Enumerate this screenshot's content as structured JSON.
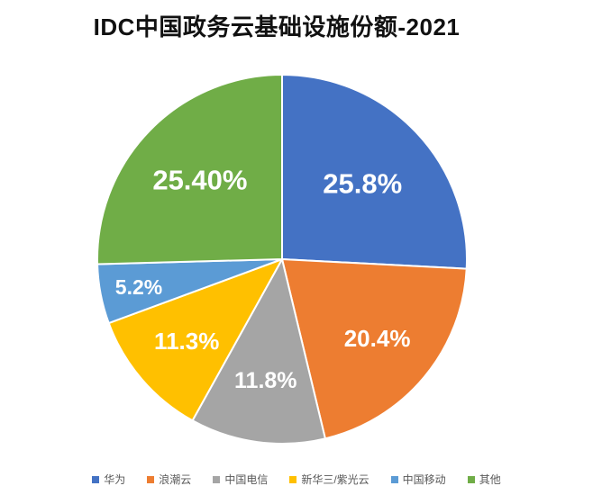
{
  "title": "IDC中国政务云基础设施份额-2021",
  "chart_data": {
    "type": "pie",
    "title": "IDC中国政务云基础设施份额-2021",
    "labels": [
      "华为",
      "浪潮云",
      "中国电信",
      "新华三/紫光云",
      "中国移动",
      "其他"
    ],
    "values": [
      25.8,
      20.4,
      11.8,
      11.3,
      5.2,
      25.4
    ],
    "slice_labels": [
      "25.8%",
      "20.4%",
      "11.8%",
      "11.3%",
      "5.2%",
      "25.40%"
    ],
    "colors": [
      "#4472C4",
      "#ED7D31",
      "#A5A5A5",
      "#FFC000",
      "#5B9BD5",
      "#70AD47"
    ],
    "start_angle_deg": 0,
    "direction": "clockwise",
    "slice_label_color": "#FFFFFF",
    "legend_position": "bottom",
    "legend_text_color": "#595959",
    "background_color": "#FFFFFF"
  }
}
